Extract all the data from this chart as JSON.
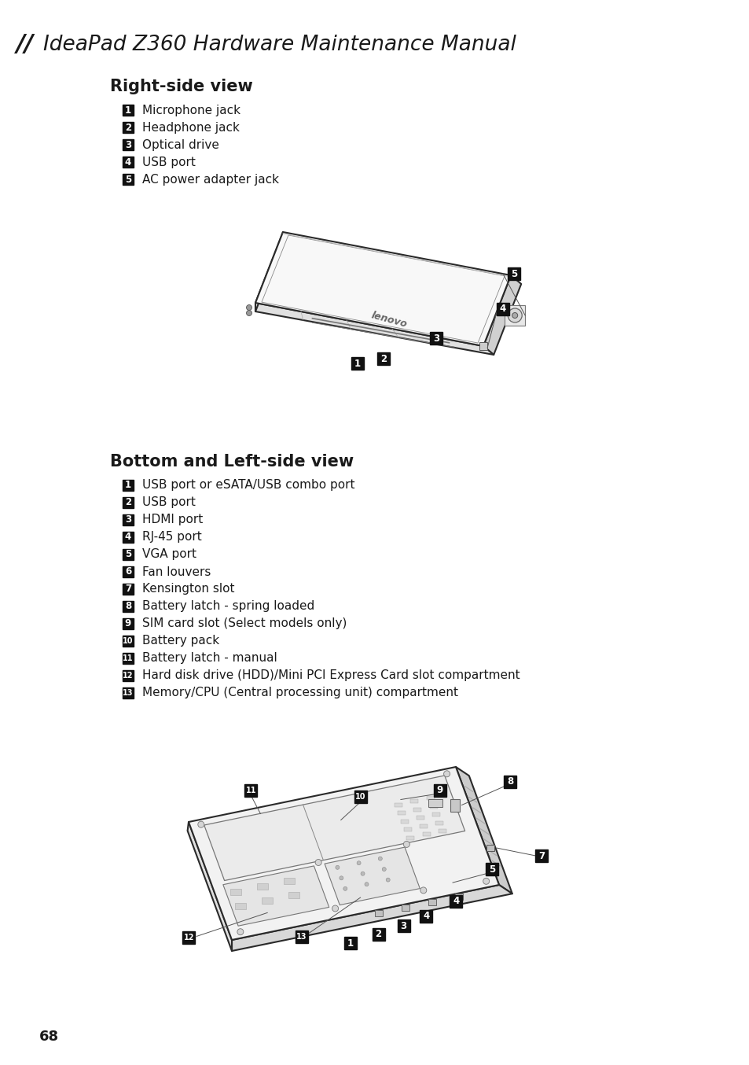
{
  "background_color": "#ffffff",
  "page_number": "68",
  "header_text": "IdeaPad Z360 Hardware Maintenance Manual",
  "section1_title": "Right-side view",
  "section1_items": [
    {
      "num": "1",
      "text": "Microphone jack"
    },
    {
      "num": "2",
      "text": "Headphone jack"
    },
    {
      "num": "3",
      "text": "Optical drive"
    },
    {
      "num": "4",
      "text": "USB port"
    },
    {
      "num": "5",
      "text": "AC power adapter jack"
    }
  ],
  "section2_title": "Bottom and Left-side view",
  "section2_items": [
    {
      "num": "1",
      "text": "USB port or eSATA/USB combo port"
    },
    {
      "num": "2",
      "text": "USB port"
    },
    {
      "num": "3",
      "text": "HDMI port"
    },
    {
      "num": "4",
      "text": "RJ-45 port"
    },
    {
      "num": "5",
      "text": "VGA port"
    },
    {
      "num": "6",
      "text": "Fan louvers"
    },
    {
      "num": "7",
      "text": "Kensington slot"
    },
    {
      "num": "8",
      "text": "Battery latch - spring loaded"
    },
    {
      "num": "9",
      "text": "SIM card slot (Select models only)"
    },
    {
      "num": "10",
      "text": "Battery pack"
    },
    {
      "num": "11",
      "text": "Battery latch - manual"
    },
    {
      "num": "12",
      "text": "Hard disk drive (HDD)/Mini PCI Express Card slot compartment"
    },
    {
      "num": "13",
      "text": "Memory/CPU (Central processing unit) compartment"
    }
  ],
  "label_bg_dark": "#111111",
  "label_text_white": "#ffffff",
  "text_color": "#1a1a1a",
  "lc": "#2a2a2a",
  "lw": 1.5,
  "laptop_fill_top": "#f8f8f8",
  "laptop_fill_right": "#dddddd",
  "laptop_fill_bottom": "#e8e8e8",
  "laptop_fill_left": "#eeeeee"
}
